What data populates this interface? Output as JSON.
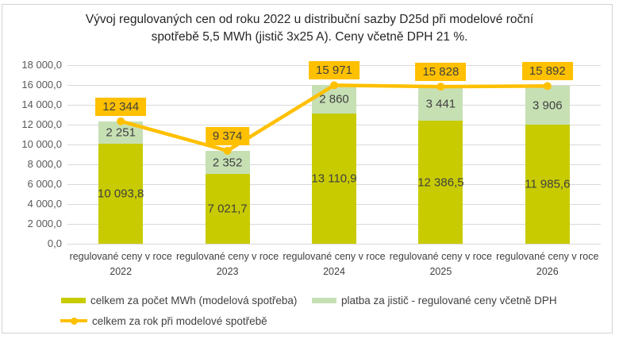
{
  "window": {
    "background": "#FFFFFF",
    "frame_border_color": "#D3D3D3"
  },
  "chart_data": {
    "type": "bar",
    "subtype": "stacked-bars-with-total-line",
    "title_lines": [
      "Vývoj regulovaných cen od roku 2022 u distribuční sazby D25d při modelové roční",
      "spotřebě 5,5 MWh (jistič 3x25 A). Ceny včetně DPH 21 %."
    ],
    "categories": [
      {
        "line1": "regulované ceny v roce",
        "line2": "2022"
      },
      {
        "line1": "regulované ceny v roce",
        "line2": "2023"
      },
      {
        "line1": "regulované ceny v roce",
        "line2": "2024"
      },
      {
        "line1": "regulované ceny v roce",
        "line2": "2025"
      },
      {
        "line1": "regulované ceny v roce",
        "line2": "2026"
      }
    ],
    "series": [
      {
        "name": "celkem za počet MWh (modelová spotřeba)",
        "type": "bar",
        "color": "#C8CB00",
        "values": [
          10093.8,
          7021.7,
          13110.9,
          12386.5,
          11985.6
        ],
        "labels": [
          "10 093,8",
          "7 021,7",
          "13 110,9",
          "12 386,5",
          "11 985,6"
        ]
      },
      {
        "name": "platba za jistič - regulované ceny včetně DPH",
        "type": "bar",
        "color": "#C6E0B4",
        "values": [
          2251,
          2352,
          2860,
          3441,
          3906
        ],
        "labels": [
          "2 251",
          "2 352",
          "2 860",
          "3 441",
          "3 906"
        ]
      },
      {
        "name": "celkem za rok při modelové spotřebě",
        "type": "line",
        "color": "#FFC000",
        "values": [
          12344,
          9374,
          15971,
          15828,
          15892
        ],
        "labels": [
          "12 344",
          "9 374",
          "15 971",
          "15 828",
          "15 892"
        ]
      }
    ],
    "y_axis": {
      "min": 0,
      "max": 18000,
      "step": 2000,
      "tick_labels": [
        "0,0",
        "2 000,0",
        "4 000,0",
        "6 000,0",
        "8 000,0",
        "10 000,0",
        "12 000,0",
        "14 000,0",
        "16 000,0",
        "18 000,0"
      ]
    },
    "grid": true,
    "legend_position": "bottom",
    "colors": {
      "gridline": "#D9D9D9",
      "axis_text": "#595959",
      "label_text": "#404040",
      "title_text": "#262626",
      "total_label_background": "#FFC000"
    }
  }
}
